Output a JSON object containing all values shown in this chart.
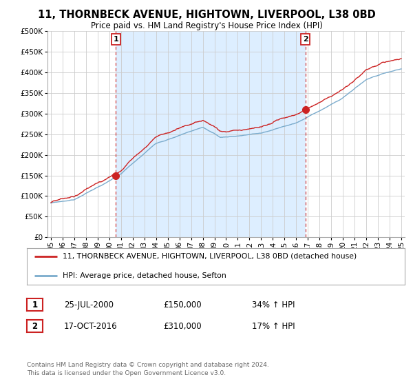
{
  "title": "11, THORNBECK AVENUE, HIGHTOWN, LIVERPOOL, L38 0BD",
  "subtitle": "Price paid vs. HM Land Registry's House Price Index (HPI)",
  "legend_line1": "11, THORNBECK AVENUE, HIGHTOWN, LIVERPOOL, L38 0BD (detached house)",
  "legend_line2": "HPI: Average price, detached house, Sefton",
  "sale1_date": "25-JUL-2000",
  "sale1_price": "£150,000",
  "sale1_hpi": "34% ↑ HPI",
  "sale1_year": 2000.56,
  "sale1_value": 150000,
  "sale2_date": "17-OCT-2016",
  "sale2_price": "£310,000",
  "sale2_hpi": "17% ↑ HPI",
  "sale2_year": 2016.79,
  "sale2_value": 310000,
  "red_color": "#cc2222",
  "blue_color": "#7aabcc",
  "shade_color": "#ddeeff",
  "annotation_color": "#cc2222",
  "grid_color": "#cccccc",
  "background_color": "#ffffff",
  "ylim_min": 0,
  "ylim_max": 500000,
  "copyright_text": "Contains HM Land Registry data © Crown copyright and database right 2024.\nThis data is licensed under the Open Government Licence v3.0."
}
